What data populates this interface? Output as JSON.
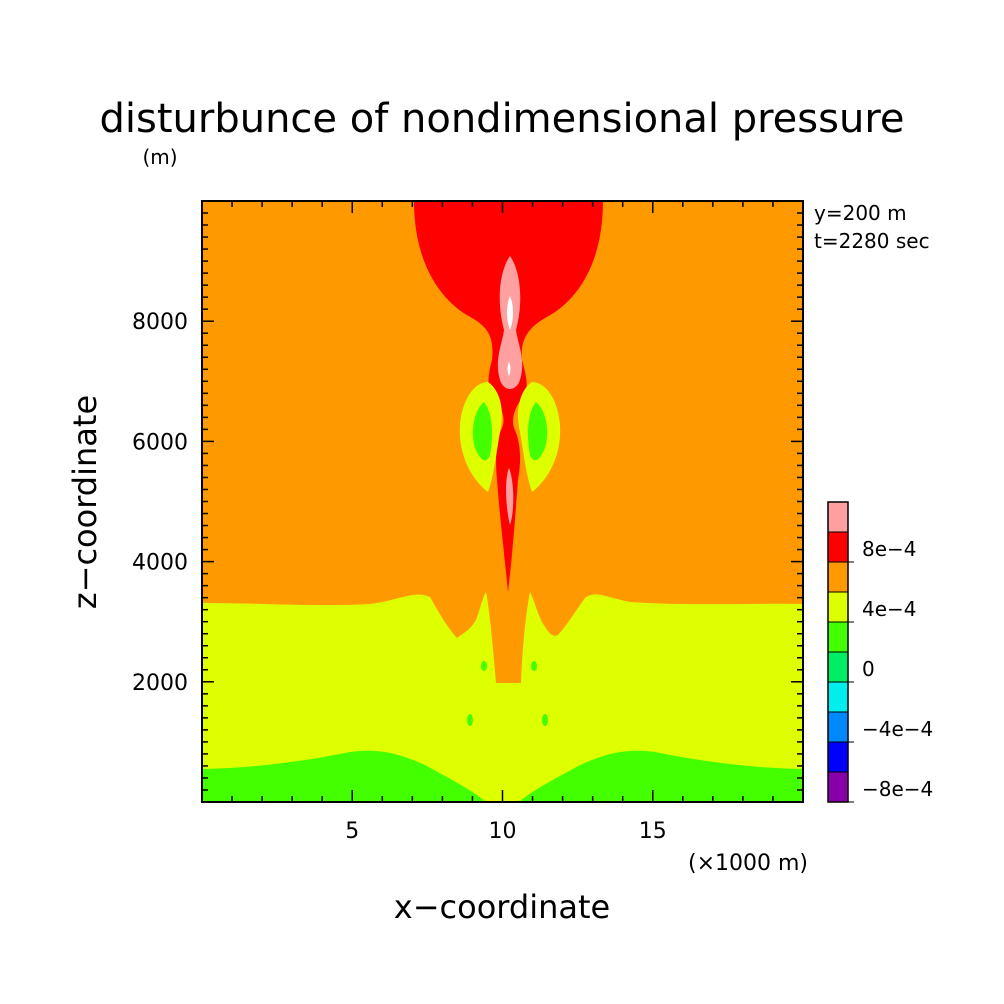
{
  "chart_data": {
    "type": "heatmap",
    "title": "disturbunce of nondimensional pressure",
    "ylabel_unit": "(m)",
    "xlabel": "x−coordinate",
    "ylabel": "z−coordinate",
    "xunit": "(×1000 m)",
    "annotations": [
      "y=200 m",
      "t=2280 sec"
    ],
    "xlim": [
      0,
      20
    ],
    "ylim": [
      0,
      10000
    ],
    "xticks": [
      5,
      10,
      15
    ],
    "yticks": [
      2000,
      4000,
      6000,
      8000
    ],
    "colorbar": {
      "levels": [
        {
          "label": "",
          "color": "#ffa0a0"
        },
        {
          "label": "8e−4",
          "color": "#ff0000"
        },
        {
          "label": "",
          "color": "#ff9900"
        },
        {
          "label": "4e−4",
          "color": "#ddff00"
        },
        {
          "label": "",
          "color": "#44ff00"
        },
        {
          "label": "0",
          "color": "#00ee66"
        },
        {
          "label": "",
          "color": "#00eeee"
        },
        {
          "label": "−4e−4",
          "color": "#0088ff"
        },
        {
          "label": "",
          "color": "#0000ff"
        },
        {
          "label": "−8e−4",
          "color": "#8800aa"
        }
      ]
    },
    "regions": [
      {
        "name": "background",
        "level": "4e-4 to 8e-4",
        "color": "#ff9900"
      },
      {
        "name": "lower-layer",
        "level": "0 to 4e-4",
        "color": "#ddff00"
      },
      {
        "name": "surface-layer",
        "level": "-4e-4 to 0",
        "color": "#44ff00"
      },
      {
        "name": "upper-plume",
        "level": "8e-4 to 1.2e-3",
        "color": "#ff0000"
      },
      {
        "name": "plume-core",
        "level": "> 1.2e-3",
        "color": "#ffa0a0"
      },
      {
        "name": "side-lobes",
        "level": "0 to 4e-4",
        "color": "#ddff00"
      },
      {
        "name": "side-lobe-cores",
        "level": "-4e-4 to 0",
        "color": "#44ff00"
      }
    ]
  }
}
